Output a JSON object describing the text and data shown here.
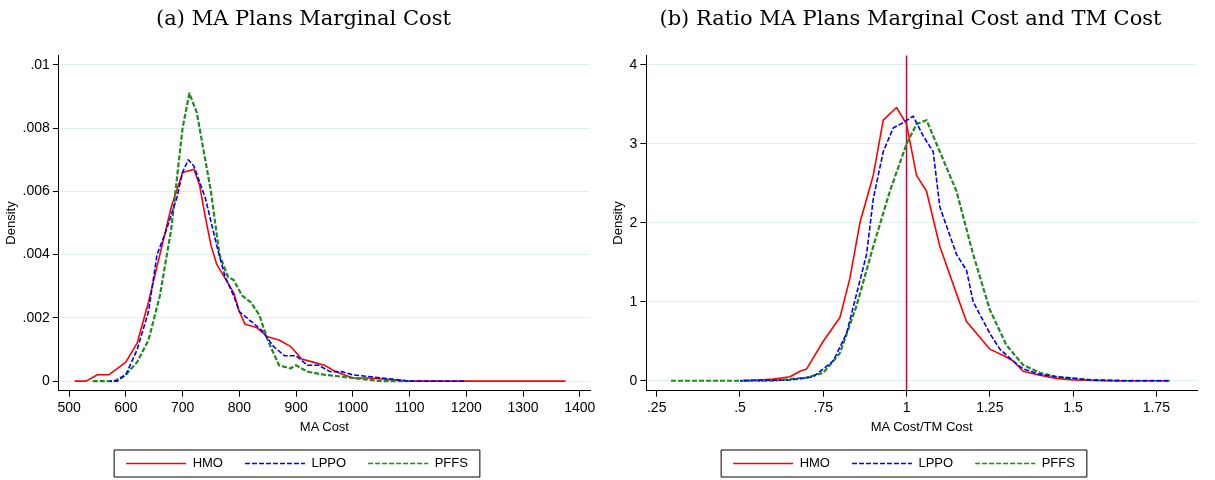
{
  "chart_data": [
    {
      "type": "line",
      "title": "(a) MA Plans Marginal Cost",
      "xlabel": "MA Cost",
      "ylabel": "Density",
      "grid": "y",
      "legend": "bottom",
      "marker": "none",
      "xlim": [
        482,
        1418
      ],
      "xticks": [
        500,
        600,
        700,
        800,
        900,
        1000,
        1100,
        1200,
        1300,
        1400
      ],
      "ylim": [
        -0.0003,
        0.0103
      ],
      "yticks": [
        0,
        {
          "value": 0.002,
          "label": ".002"
        },
        {
          "value": 0.004,
          "label": ".004"
        },
        {
          "value": 0.006,
          "label": ".006"
        },
        {
          "value": 0.008,
          "label": ".008"
        },
        {
          "value": 0.01,
          "label": ".01"
        }
      ],
      "series": [
        {
          "name": "HMO",
          "color": "#ff0000",
          "line_style": "solid",
          "x": [
            510,
            530,
            550,
            570,
            600,
            620,
            640,
            660,
            680,
            700,
            720,
            730,
            740,
            750,
            760,
            780,
            790,
            800,
            810,
            830,
            850,
            870,
            890,
            910,
            930,
            950,
            970,
            1000,
            1030,
            1100,
            1375
          ],
          "values": [
            0,
            0,
            0.0002,
            0.0002,
            0.0006,
            0.0012,
            0.0025,
            0.004,
            0.0055,
            0.0066,
            0.0067,
            0.0062,
            0.0052,
            0.0043,
            0.0037,
            0.0031,
            0.0028,
            0.0022,
            0.0018,
            0.0017,
            0.0014,
            0.0013,
            0.0011,
            0.0007,
            0.0006,
            0.0005,
            0.0003,
            0.0001,
            0.0001,
            0,
            0
          ]
        },
        {
          "name": "LPPO",
          "color": "#0000ff",
          "line_style": "dashed",
          "x": [
            572,
            585,
            600,
            620,
            640,
            655,
            670,
            690,
            700,
            710,
            720,
            740,
            760,
            775,
            790,
            800,
            820,
            840,
            860,
            880,
            900,
            920,
            940,
            960,
            980,
            1000,
            1050,
            1100,
            1200
          ],
          "values": [
            0,
            0,
            0.0002,
            0.001,
            0.0022,
            0.004,
            0.0047,
            0.0058,
            0.0066,
            0.007,
            0.0068,
            0.0058,
            0.0043,
            0.0033,
            0.0027,
            0.0022,
            0.0019,
            0.0016,
            0.0011,
            0.0008,
            0.0008,
            0.0005,
            0.0005,
            0.0003,
            0.0003,
            0.0002,
            0.0001,
            0,
            0
          ]
        },
        {
          "name": "PFFS",
          "color": "#1f8a1f",
          "line_style": "dashed",
          "x": [
            540,
            580,
            600,
            620,
            640,
            660,
            680,
            700,
            712,
            725,
            740,
            750,
            765,
            780,
            790,
            805,
            820,
            835,
            850,
            870,
            890,
            900,
            920,
            950,
            1000,
            1050,
            1100
          ],
          "values": [
            0,
            0,
            0.0002,
            0.0006,
            0.0013,
            0.0027,
            0.0048,
            0.008,
            0.0091,
            0.0085,
            0.007,
            0.006,
            0.004,
            0.0033,
            0.0032,
            0.0027,
            0.0025,
            0.0021,
            0.0013,
            0.0005,
            0.0004,
            0.0005,
            0.0003,
            0.0002,
            0.0001,
            0,
            0
          ]
        }
      ]
    },
    {
      "type": "line",
      "title": "(b) Ratio MA Plans Marginal Cost and TM Cost",
      "xlabel": "MA Cost/TM Cost",
      "ylabel": "Density",
      "grid": "y",
      "legend": "bottom",
      "marker": "none",
      "xlim": [
        0.219,
        1.872
      ],
      "xticks": [
        {
          "value": 0.25,
          "label": ".25"
        },
        {
          "value": 0.5,
          "label": ".5"
        },
        {
          "value": 0.75,
          "label": ".75"
        },
        1,
        1.25,
        1.5,
        1.75
      ],
      "ylim": [
        -0.125,
        4.12
      ],
      "yticks": [
        0,
        1,
        2,
        3,
        4
      ],
      "ref_lines": [
        {
          "axis": "x",
          "value": 1,
          "color": "#b0103a"
        }
      ],
      "series": [
        {
          "name": "HMO",
          "color": "#ff0000",
          "line_style": "solid",
          "x": [
            0.5,
            0.6,
            0.65,
            0.68,
            0.7,
            0.75,
            0.8,
            0.83,
            0.86,
            0.9,
            0.93,
            0.97,
            1.0,
            1.03,
            1.06,
            1.1,
            1.15,
            1.18,
            1.22,
            1.25,
            1.3,
            1.32,
            1.35,
            1.4,
            1.45,
            1.5,
            1.6,
            1.79
          ],
          "values": [
            0,
            0.02,
            0.05,
            0.12,
            0.15,
            0.5,
            0.8,
            1.3,
            2.0,
            2.6,
            3.3,
            3.46,
            3.25,
            2.6,
            2.4,
            1.7,
            1.1,
            0.75,
            0.55,
            0.4,
            0.3,
            0.25,
            0.12,
            0.07,
            0.03,
            0.01,
            0,
            0
          ]
        },
        {
          "name": "LPPO",
          "color": "#0000ff",
          "line_style": "dashed",
          "x": [
            0.5,
            0.65,
            0.72,
            0.78,
            0.82,
            0.85,
            0.88,
            0.9,
            0.93,
            0.96,
            0.99,
            1.02,
            1.05,
            1.08,
            1.1,
            1.15,
            1.18,
            1.2,
            1.25,
            1.28,
            1.32,
            1.35,
            1.4,
            1.45,
            1.55,
            1.65,
            1.79
          ],
          "values": [
            0,
            0.01,
            0.05,
            0.25,
            0.6,
            1.1,
            1.6,
            2.3,
            2.9,
            3.2,
            3.27,
            3.35,
            3.1,
            2.9,
            2.2,
            1.6,
            1.4,
            1.0,
            0.6,
            0.4,
            0.25,
            0.15,
            0.08,
            0.05,
            0.01,
            0,
            0
          ]
        },
        {
          "name": "PFFS",
          "color": "#1f8a1f",
          "line_style": "dashed",
          "x": [
            0.29,
            0.6,
            0.7,
            0.75,
            0.8,
            0.85,
            0.9,
            0.95,
            1.0,
            1.03,
            1.06,
            1.1,
            1.15,
            1.2,
            1.25,
            1.3,
            1.35,
            1.4,
            1.45,
            1.55,
            1.65,
            1.79
          ],
          "values": [
            0,
            0,
            0.04,
            0.1,
            0.35,
            0.95,
            1.7,
            2.4,
            3.0,
            3.25,
            3.3,
            2.9,
            2.4,
            1.6,
            0.9,
            0.45,
            0.2,
            0.1,
            0.05,
            0.01,
            0,
            0
          ]
        }
      ]
    }
  ]
}
